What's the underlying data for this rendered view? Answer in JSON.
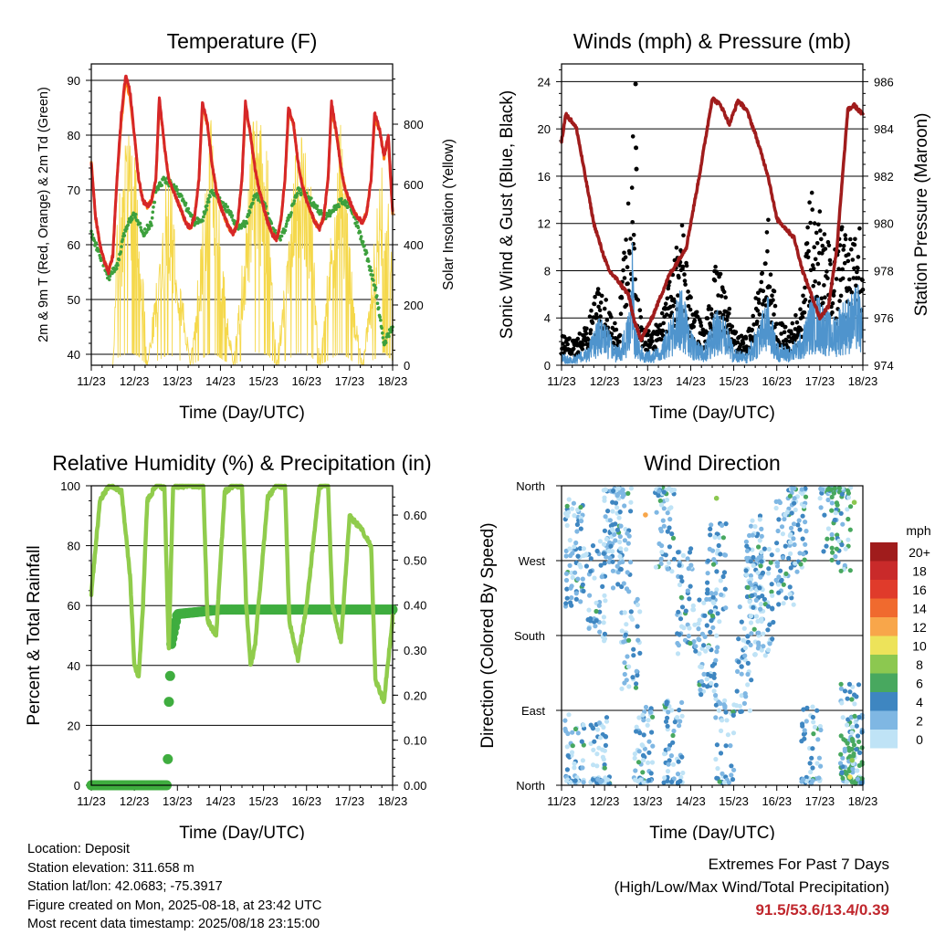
{
  "chart_data": [
    {
      "type": "line",
      "title": "Temperature (F)",
      "xlabel": "Time (Day/UTC)",
      "ylabel": "2m & 9m T (Red, Orange) & 2m Td (Green)",
      "y2label": "Solar Insolation (Yellow)",
      "x_ticks": [
        "11/23",
        "12/23",
        "13/23",
        "14/23",
        "15/23",
        "16/23",
        "17/23",
        "18/23"
      ],
      "ylim": [
        38,
        93
      ],
      "y_ticks": [
        40,
        50,
        60,
        70,
        80,
        90
      ],
      "y2lim": [
        0,
        1000
      ],
      "y2_ticks": [
        0,
        200,
        400,
        600,
        800
      ],
      "grid": true,
      "series": [
        {
          "color": "#d62728",
          "x": [
            0,
            0.1,
            0.2,
            0.3,
            0.4,
            0.5,
            0.58,
            0.7,
            0.8,
            0.9,
            1.0,
            1.1,
            1.2,
            1.3,
            1.4,
            1.5,
            1.58,
            1.7,
            1.8,
            1.9,
            2.0,
            2.1,
            2.2,
            2.3,
            2.4,
            2.5,
            2.58,
            2.7,
            2.8,
            2.9,
            3.0,
            3.1,
            3.2,
            3.3,
            3.4,
            3.5,
            3.58,
            3.7,
            3.8,
            3.9,
            4.0,
            4.1,
            4.2,
            4.3,
            4.4,
            4.5,
            4.58,
            4.7,
            4.8,
            4.9,
            5.0,
            5.1,
            5.2,
            5.3,
            5.4,
            5.5,
            5.58,
            5.7,
            5.8,
            5.9,
            6.0,
            6.1,
            6.2,
            6.3,
            6.4,
            6.5,
            6.58,
            6.7,
            6.8,
            6.9,
            7.0
          ],
          "values": [
            75,
            65,
            60,
            57,
            55,
            58,
            70,
            84,
            91,
            88,
            80,
            72,
            68,
            67,
            68,
            72,
            87,
            78,
            72,
            70,
            68,
            66,
            64,
            63,
            65,
            72,
            86,
            82,
            75,
            70,
            67,
            65,
            63,
            62,
            64,
            72,
            86,
            80,
            74,
            70,
            67,
            64,
            62,
            61,
            64,
            72,
            85,
            82,
            75,
            71,
            68,
            66,
            64,
            63,
            65,
            72,
            86,
            80,
            74,
            70,
            68,
            66,
            65,
            64,
            66,
            72,
            84,
            81,
            76,
            80,
            66
          ]
        },
        {
          "color": "#ff7f0e",
          "x": [
            0,
            0.1,
            0.2,
            0.3,
            0.4,
            0.5,
            0.58,
            0.7,
            0.8,
            0.9,
            1.0,
            1.1,
            1.2,
            1.3,
            1.4,
            1.5,
            1.58,
            1.7,
            1.8,
            1.9,
            2.0,
            2.1,
            2.2,
            2.3,
            2.4,
            2.5,
            2.58,
            2.7,
            2.8,
            2.9,
            3.0,
            3.1,
            3.2,
            3.3,
            3.4,
            3.5,
            3.58,
            3.7,
            3.8,
            3.9,
            4.0,
            4.1,
            4.2,
            4.3,
            4.4,
            4.5,
            4.58,
            4.7,
            4.8,
            4.9,
            5.0,
            5.1,
            5.2,
            5.3,
            5.4,
            5.5,
            5.58,
            5.7,
            5.8,
            5.9,
            6.0,
            6.1,
            6.2,
            6.3,
            6.4,
            6.5,
            6.58,
            6.7,
            6.8,
            6.9,
            7.0
          ],
          "values": [
            75,
            65,
            60,
            57,
            55,
            58,
            70,
            83,
            90,
            87,
            80,
            72,
            68,
            67,
            68,
            72,
            86,
            78,
            72,
            70,
            68,
            66,
            64,
            63,
            65,
            72,
            85,
            82,
            75,
            70,
            67,
            65,
            63,
            62,
            64,
            72,
            85,
            80,
            74,
            70,
            67,
            64,
            62,
            61,
            64,
            72,
            84,
            82,
            75,
            71,
            68,
            66,
            64,
            63,
            65,
            72,
            85,
            80,
            74,
            70,
            68,
            66,
            65,
            64,
            66,
            72,
            83,
            81,
            76,
            79,
            66
          ]
        },
        {
          "color": "#3da03d",
          "x": [
            0,
            0.2,
            0.4,
            0.6,
            0.8,
            1.0,
            1.2,
            1.4,
            1.5,
            1.7,
            2.0,
            2.2,
            2.4,
            2.6,
            2.8,
            3.0,
            3.2,
            3.4,
            3.6,
            3.8,
            4.0,
            4.2,
            4.4,
            4.6,
            4.8,
            5.0,
            5.2,
            5.4,
            5.6,
            5.8,
            6.0,
            6.2,
            6.4,
            6.6,
            6.8,
            7.0
          ],
          "values": [
            62,
            58,
            54,
            56,
            63,
            66,
            62,
            64,
            70,
            72,
            70,
            67,
            64,
            65,
            70,
            68,
            66,
            63,
            64,
            69,
            68,
            63,
            61,
            65,
            70,
            69,
            67,
            65,
            66,
            68,
            67,
            63,
            58,
            52,
            42,
            45
          ]
        },
        {
          "color": "#f5d84b",
          "x": [
            0,
            0.2,
            0.5,
            0.6,
            0.9,
            1.1,
            1.3,
            1.6,
            1.8,
            2.1,
            2.3,
            2.6,
            2.8,
            3.1,
            3.3,
            3.6,
            3.8,
            4.1,
            4.3,
            4.6,
            4.8,
            5.1,
            5.3,
            5.6,
            5.8,
            6.1,
            6.3,
            6.6,
            6.8,
            7.0
          ],
          "y2": true,
          "values": [
            0,
            0,
            0,
            500,
            880,
            600,
            0,
            400,
            740,
            280,
            0,
            500,
            890,
            300,
            0,
            500,
            900,
            700,
            0,
            450,
            860,
            600,
            0,
            500,
            860,
            200,
            0,
            450,
            880,
            300
          ]
        }
      ]
    },
    {
      "type": "line",
      "title": "Winds (mph) & Pressure (mb)",
      "xlabel": "Time (Day/UTC)",
      "ylabel": "Sonic Wind & Gust (Blue, Black)",
      "y2label": "Station Pressure (Maroon)",
      "x_ticks": [
        "11/23",
        "12/23",
        "13/23",
        "14/23",
        "15/23",
        "16/23",
        "17/23",
        "18/23"
      ],
      "ylim": [
        0,
        25.5
      ],
      "y_ticks": [
        0,
        4,
        8,
        12,
        16,
        20,
        24
      ],
      "y2lim": [
        974,
        986.75
      ],
      "y2_ticks": [
        974,
        976,
        978,
        980,
        982,
        984,
        986
      ],
      "grid": true,
      "series": [
        {
          "color": "#000000",
          "x": [
            0,
            0.3,
            0.6,
            0.9,
            1.1,
            1.3,
            1.6,
            1.65,
            1.7,
            1.9,
            2.3,
            2.6,
            2.8,
            3.0,
            3.3,
            3.6,
            3.8,
            4.0,
            4.3,
            4.6,
            4.8,
            5.0,
            5.3,
            5.6,
            5.8,
            6.0,
            6.3,
            6.5,
            6.7,
            6.9,
            7.0
          ],
          "values": [
            2.5,
            2.2,
            3.5,
            7.5,
            5,
            3,
            16.5,
            23.8,
            8,
            3,
            4,
            9,
            12,
            6,
            3,
            9,
            7,
            3,
            2.5,
            7,
            13,
            4,
            3,
            6,
            16,
            13,
            9,
            12,
            11,
            13,
            8
          ]
        },
        {
          "color": "#4f94cd",
          "x": [
            0,
            0.3,
            0.6,
            0.9,
            1.1,
            1.3,
            1.6,
            1.65,
            1.7,
            1.9,
            2.3,
            2.6,
            2.8,
            3.0,
            3.3,
            3.6,
            3.8,
            4.0,
            4.3,
            4.6,
            4.8,
            5.0,
            5.3,
            5.6,
            5.8,
            6.0,
            6.3,
            6.5,
            6.7,
            6.9,
            7.0
          ],
          "values": [
            1,
            0.8,
            1.5,
            4.5,
            3,
            1.5,
            5,
            13,
            4,
            1.2,
            1.5,
            5,
            7,
            3,
            1.5,
            5,
            4,
            1.5,
            1,
            4,
            6,
            2,
            1.5,
            3,
            6,
            6,
            4,
            5.5,
            6,
            7,
            4
          ]
        },
        {
          "color": "#a01c1c",
          "y2": true,
          "x": [
            0,
            0.1,
            0.25,
            0.35,
            0.55,
            0.75,
            0.95,
            1.1,
            1.3,
            1.55,
            1.7,
            1.85,
            2.1,
            2.5,
            2.9,
            3.2,
            3.5,
            3.7,
            3.9,
            4.1,
            4.3,
            4.5,
            4.8,
            5.0,
            5.4,
            5.6,
            5.8,
            6.0,
            6.2,
            6.4,
            6.55,
            6.65,
            6.8,
            7.0
          ],
          "values": [
            983.5,
            984.6,
            984.3,
            984.0,
            982.0,
            980.0,
            978.8,
            978.0,
            977.6,
            977.0,
            975.8,
            975.1,
            976.0,
            977.8,
            979.0,
            982.0,
            985.3,
            985.0,
            984.2,
            985.2,
            984.8,
            983.8,
            982.0,
            980.2,
            979.4,
            978.0,
            977.0,
            976.0,
            976.5,
            979.0,
            982.5,
            984.8,
            985.0,
            984.6
          ]
        }
      ]
    },
    {
      "type": "line",
      "title": "Relative Humidity (%) & Precipitation (in)",
      "xlabel": "Time (Day/UTC)",
      "ylabel": "Percent & Total Rainfall",
      "x_ticks": [
        "11/23",
        "12/23",
        "13/23",
        "14/23",
        "15/23",
        "16/23",
        "17/23",
        "18/23"
      ],
      "ylim": [
        0,
        100
      ],
      "y_ticks": [
        0,
        20,
        40,
        60,
        80,
        100
      ],
      "y2lim": [
        0,
        0.665
      ],
      "y2_ticks": [
        "0.00",
        "0.10",
        "0.20",
        "0.30",
        "0.40",
        "0.50",
        "0.60"
      ],
      "grid": true,
      "series": [
        {
          "color": "#90cc4c",
          "x": [
            0,
            0.2,
            0.4,
            0.5,
            0.7,
            0.9,
            1.0,
            1.1,
            1.2,
            1.3,
            1.5,
            1.6,
            1.7,
            1.8,
            1.9,
            2.1,
            2.4,
            2.6,
            2.7,
            2.9,
            3.1,
            3.3,
            3.5,
            3.6,
            3.7,
            3.8,
            4.1,
            4.3,
            4.5,
            4.6,
            4.8,
            5.0,
            5.3,
            5.5,
            5.6,
            5.8,
            6.0,
            6.3,
            6.5,
            6.6,
            6.8,
            7.0
          ],
          "values": [
            64,
            95,
            100,
            100,
            98,
            70,
            40,
            36,
            60,
            95,
            100,
            100,
            99,
            45,
            100,
            100,
            100,
            100,
            55,
            50,
            98,
            100,
            100,
            60,
            40,
            46,
            96,
            100,
            100,
            55,
            42,
            60,
            100,
            100,
            60,
            48,
            90,
            85,
            80,
            35,
            28,
            56
          ]
        },
        {
          "color": "#3fad3f",
          "y2": true,
          "x": [
            0,
            0.5,
            1.0,
            1.5,
            1.75,
            1.77,
            1.79,
            1.81,
            1.83,
            1.85,
            2.0,
            3.0,
            4.0,
            5.0,
            6.0,
            7.0
          ],
          "values": [
            0.0,
            0.0,
            0.0,
            0.0,
            0.0,
            0.02,
            0.13,
            0.21,
            0.24,
            0.31,
            0.38,
            0.39,
            0.39,
            0.39,
            0.39,
            0.39
          ]
        }
      ]
    },
    {
      "type": "scatter",
      "title": "Wind Direction",
      "xlabel": "Time (Day/UTC)",
      "ylabel": "Direction (Colored By Speed)",
      "x_ticks": [
        "11/23",
        "12/23",
        "13/23",
        "14/23",
        "15/23",
        "16/23",
        "17/23",
        "18/23"
      ],
      "y_ticks": [
        "North",
        "East",
        "South",
        "West",
        "North"
      ],
      "ylim": [
        0,
        360
      ],
      "grid": true,
      "legend": {
        "title": "mph",
        "labels": [
          "20+",
          "18",
          "16",
          "14",
          "12",
          "10",
          "8",
          "6",
          "4",
          "2",
          "0"
        ],
        "colors": [
          "#a01c1c",
          "#c92a2a",
          "#e03b2b",
          "#f06a2e",
          "#f8a64a",
          "#ede35a",
          "#8cc850",
          "#48a85f",
          "#3e86c1",
          "#7fb7e3",
          "#bfe3f6"
        ]
      }
    }
  ],
  "info": {
    "location": "Location: Deposit",
    "elevation": "Station elevation: 311.658 m",
    "latlon": "Station lat/lon: 42.0683; -75.3917",
    "created": "Figure created on Mon, 2025-08-18, at 23:42 UTC",
    "recent": "Most recent data timestamp: 2025/08/18 23:15:00"
  },
  "extremes": {
    "title": "Extremes For Past 7 Days",
    "subtitle": "(High/Low/Max Wind/Total Precipitation)",
    "values": "91.5/53.6/13.4/0.39"
  }
}
